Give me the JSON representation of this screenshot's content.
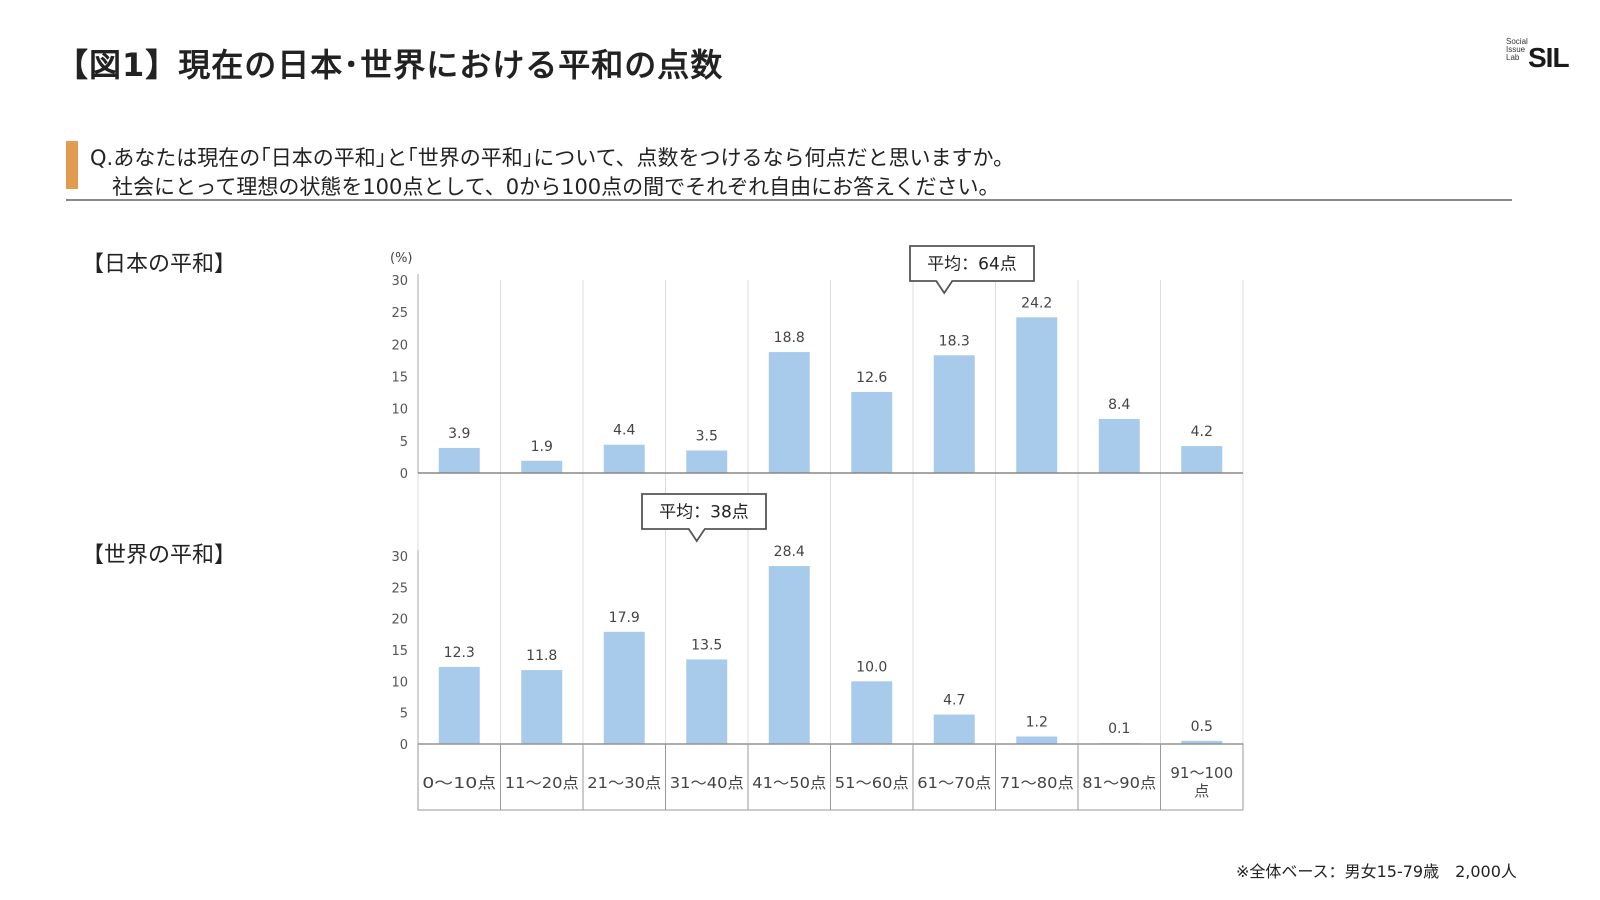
{
  "page": {
    "title": "【図1】現在の日本･世界における平和の点数",
    "logo_small_lines": [
      "Social",
      "Issue",
      "Lab"
    ],
    "logo_text": "SIL",
    "question_line1": "Q.あなたは現在の｢日本の平和｣と｢世界の平和｣について、点数をつけるなら何点だと思いますか。",
    "question_line2": "社会にとって理想の状態を100点として、0から100点の間でそれぞれ自由にお答えください。",
    "footnote": "※全体ベース：男女15-79歳　2,000人",
    "accent_color": "#e39b52",
    "bar_color": "#a9cbeb"
  },
  "chart_data": [
    {
      "type": "bar",
      "section_label": "【日本の平和】",
      "unit_label": "(%)",
      "categories": [
        "0～10点",
        "11～20点",
        "21～30点",
        "31～40点",
        "41～50点",
        "51～60点",
        "61～70点",
        "71～80点",
        "81～90点",
        "91～100点"
      ],
      "values": [
        3.9,
        1.9,
        4.4,
        3.5,
        18.8,
        12.6,
        18.3,
        24.2,
        8.4,
        4.2
      ],
      "value_labels": [
        "3.9",
        "1.9",
        "4.4",
        "3.5",
        "18.8",
        "12.6",
        "18.3",
        "24.2",
        "8.4",
        "4.2"
      ],
      "ylim": [
        0,
        30
      ],
      "yticks": [
        "0",
        "5",
        "10",
        "15",
        "20",
        "25",
        "30"
      ],
      "callout": "平均：64点",
      "callout_category_index": 6
    },
    {
      "type": "bar",
      "section_label": "【世界の平和】",
      "categories": [
        "0～10点",
        "11～20点",
        "21～30点",
        "31～40点",
        "41～50点",
        "51～60点",
        "61～70点",
        "71～80点",
        "81～90点",
        "91～100点"
      ],
      "values": [
        12.3,
        11.8,
        17.9,
        13.5,
        28.4,
        10.0,
        4.7,
        1.2,
        0.1,
        0.5
      ],
      "value_labels": [
        "12.3",
        "11.8",
        "17.9",
        "13.5",
        "28.4",
        "10.0",
        "4.7",
        "1.2",
        "0.1",
        "0.5"
      ],
      "ylim": [
        0,
        30
      ],
      "yticks": [
        "0",
        "5",
        "10",
        "15",
        "20",
        "25",
        "30"
      ],
      "callout": "平均：38点",
      "callout_category_index": 3
    }
  ],
  "x_axis_labels": [
    "0～10点",
    "11～20点",
    "21～30点",
    "31～40点",
    "41～50点",
    "51～60点",
    "61～70点",
    "71～80点",
    "81～90点",
    "91～100\n点"
  ]
}
